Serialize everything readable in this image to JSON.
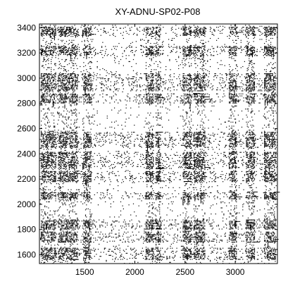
{
  "chart_data": {
    "type": "scatter",
    "title": "XY-ADNU-SP02-P08",
    "xlabel": "",
    "ylabel": "",
    "xlim": [
      1050,
      3420
    ],
    "ylim": [
      1530,
      3430
    ],
    "x_ticks": [
      1500,
      2000,
      2500,
      3000
    ],
    "y_ticks": [
      1600,
      1800,
      2000,
      2200,
      2400,
      2600,
      2800,
      3000,
      3200,
      3400
    ],
    "grid": false,
    "colors": {
      "points": "#000000",
      "frame": "#000000",
      "background": "#ffffff"
    },
    "band_x_ranges": [
      [
        1060,
        1210
      ],
      [
        1230,
        1430
      ],
      [
        1480,
        1560
      ],
      [
        2100,
        2180
      ],
      [
        2200,
        2260
      ],
      [
        2470,
        2560
      ],
      [
        2580,
        2700
      ],
      [
        2930,
        3010
      ],
      [
        3100,
        3190
      ],
      [
        3280,
        3400
      ]
    ],
    "band_y_ranges": [
      [
        1560,
        1660
      ],
      [
        1700,
        1790
      ],
      [
        1800,
        1880
      ],
      [
        2040,
        2100
      ],
      [
        2180,
        2270
      ],
      [
        2280,
        2420
      ],
      [
        2450,
        2580
      ],
      [
        2800,
        2880
      ],
      [
        2900,
        3040
      ],
      [
        3180,
        3260
      ],
      [
        3340,
        3410
      ]
    ]
  }
}
